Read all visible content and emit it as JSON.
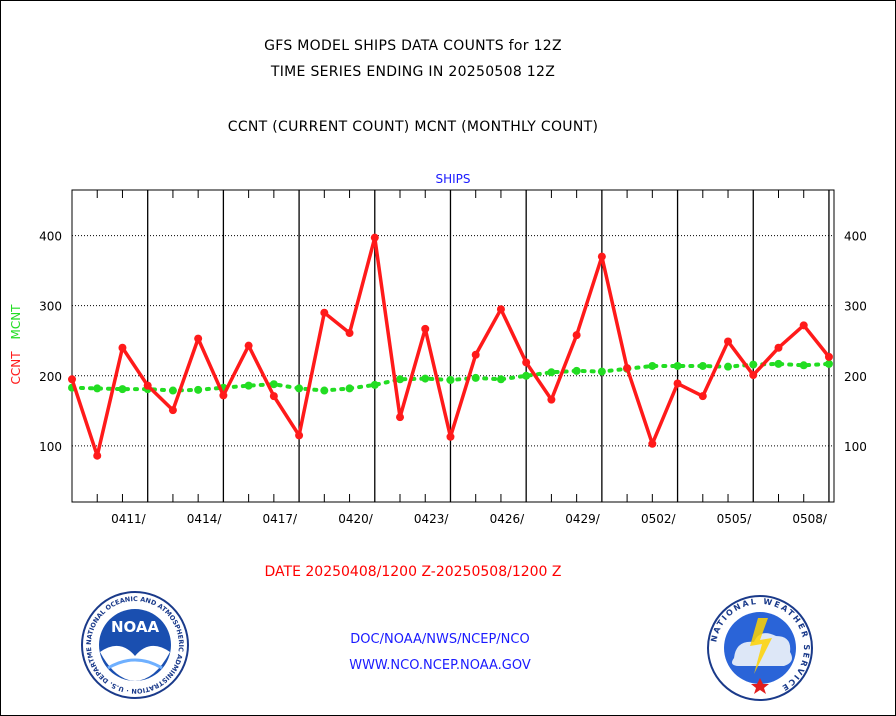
{
  "header": {
    "title_line1": "GFS MODEL SHIPS DATA COUNTS for 12Z",
    "title_line2": "TIME SERIES ENDING IN 20250508 12Z",
    "legend_line": "CCNT (CURRENT COUNT) MCNT (MONTHLY COUNT)"
  },
  "footer": {
    "date_range": "DATE 20250408/1200 Z-20250508/1200 Z",
    "org_path": "DOC/NOAA/NWS/NCEP/NCO",
    "website": "WWW.NCO.NCEP.NOAA.GOV",
    "noaa_logo_text": "NOAA",
    "noaa_ring_text": "NATIONAL OCEANIC AND ATMOSPHERIC ADMINISTRATION · U.S. DEPARTMENT OF COMMERCE",
    "nws_ring_text": "NATIONAL WEATHER SERVICE"
  },
  "colors": {
    "ccnt": "#ff1a1a",
    "mcnt": "#22dd22",
    "axis": "#000000",
    "title_blue": "#1a1aff"
  },
  "chart_data": {
    "type": "line",
    "title": "SHIPS",
    "ylabel_left": "CCNT",
    "ylabel_right": "MCNT",
    "ylim": [
      20,
      465
    ],
    "yticks": [
      100,
      200,
      300,
      400
    ],
    "x_index_range": [
      0,
      30.2
    ],
    "xtick_labels": [
      {
        "index": 3,
        "label": "0411/"
      },
      {
        "index": 6,
        "label": "0414/"
      },
      {
        "index": 9,
        "label": "0417/"
      },
      {
        "index": 12,
        "label": "0420/"
      },
      {
        "index": 15,
        "label": "0423/"
      },
      {
        "index": 18,
        "label": "0426/"
      },
      {
        "index": 21,
        "label": "0429/"
      },
      {
        "index": 24,
        "label": "0502/"
      },
      {
        "index": 27,
        "label": "0505/"
      },
      {
        "index": 30,
        "label": "0508/"
      }
    ],
    "grid": true,
    "series": [
      {
        "name": "CCNT",
        "values": [
          195,
          86,
          240,
          186,
          151,
          253,
          172,
          243,
          171,
          115,
          290,
          261,
          397,
          141,
          267,
          113,
          230,
          295,
          219,
          166,
          258,
          370,
          211,
          103,
          189,
          171,
          249,
          201,
          240,
          272,
          227
        ]
      },
      {
        "name": "MCNT",
        "values": [
          183,
          182,
          181,
          181,
          179,
          180,
          183,
          186,
          188,
          182,
          179,
          182,
          187,
          195,
          196,
          194,
          197,
          195,
          200,
          205,
          207,
          206,
          210,
          214,
          214,
          214,
          213,
          216,
          217,
          215,
          217
        ]
      }
    ]
  }
}
